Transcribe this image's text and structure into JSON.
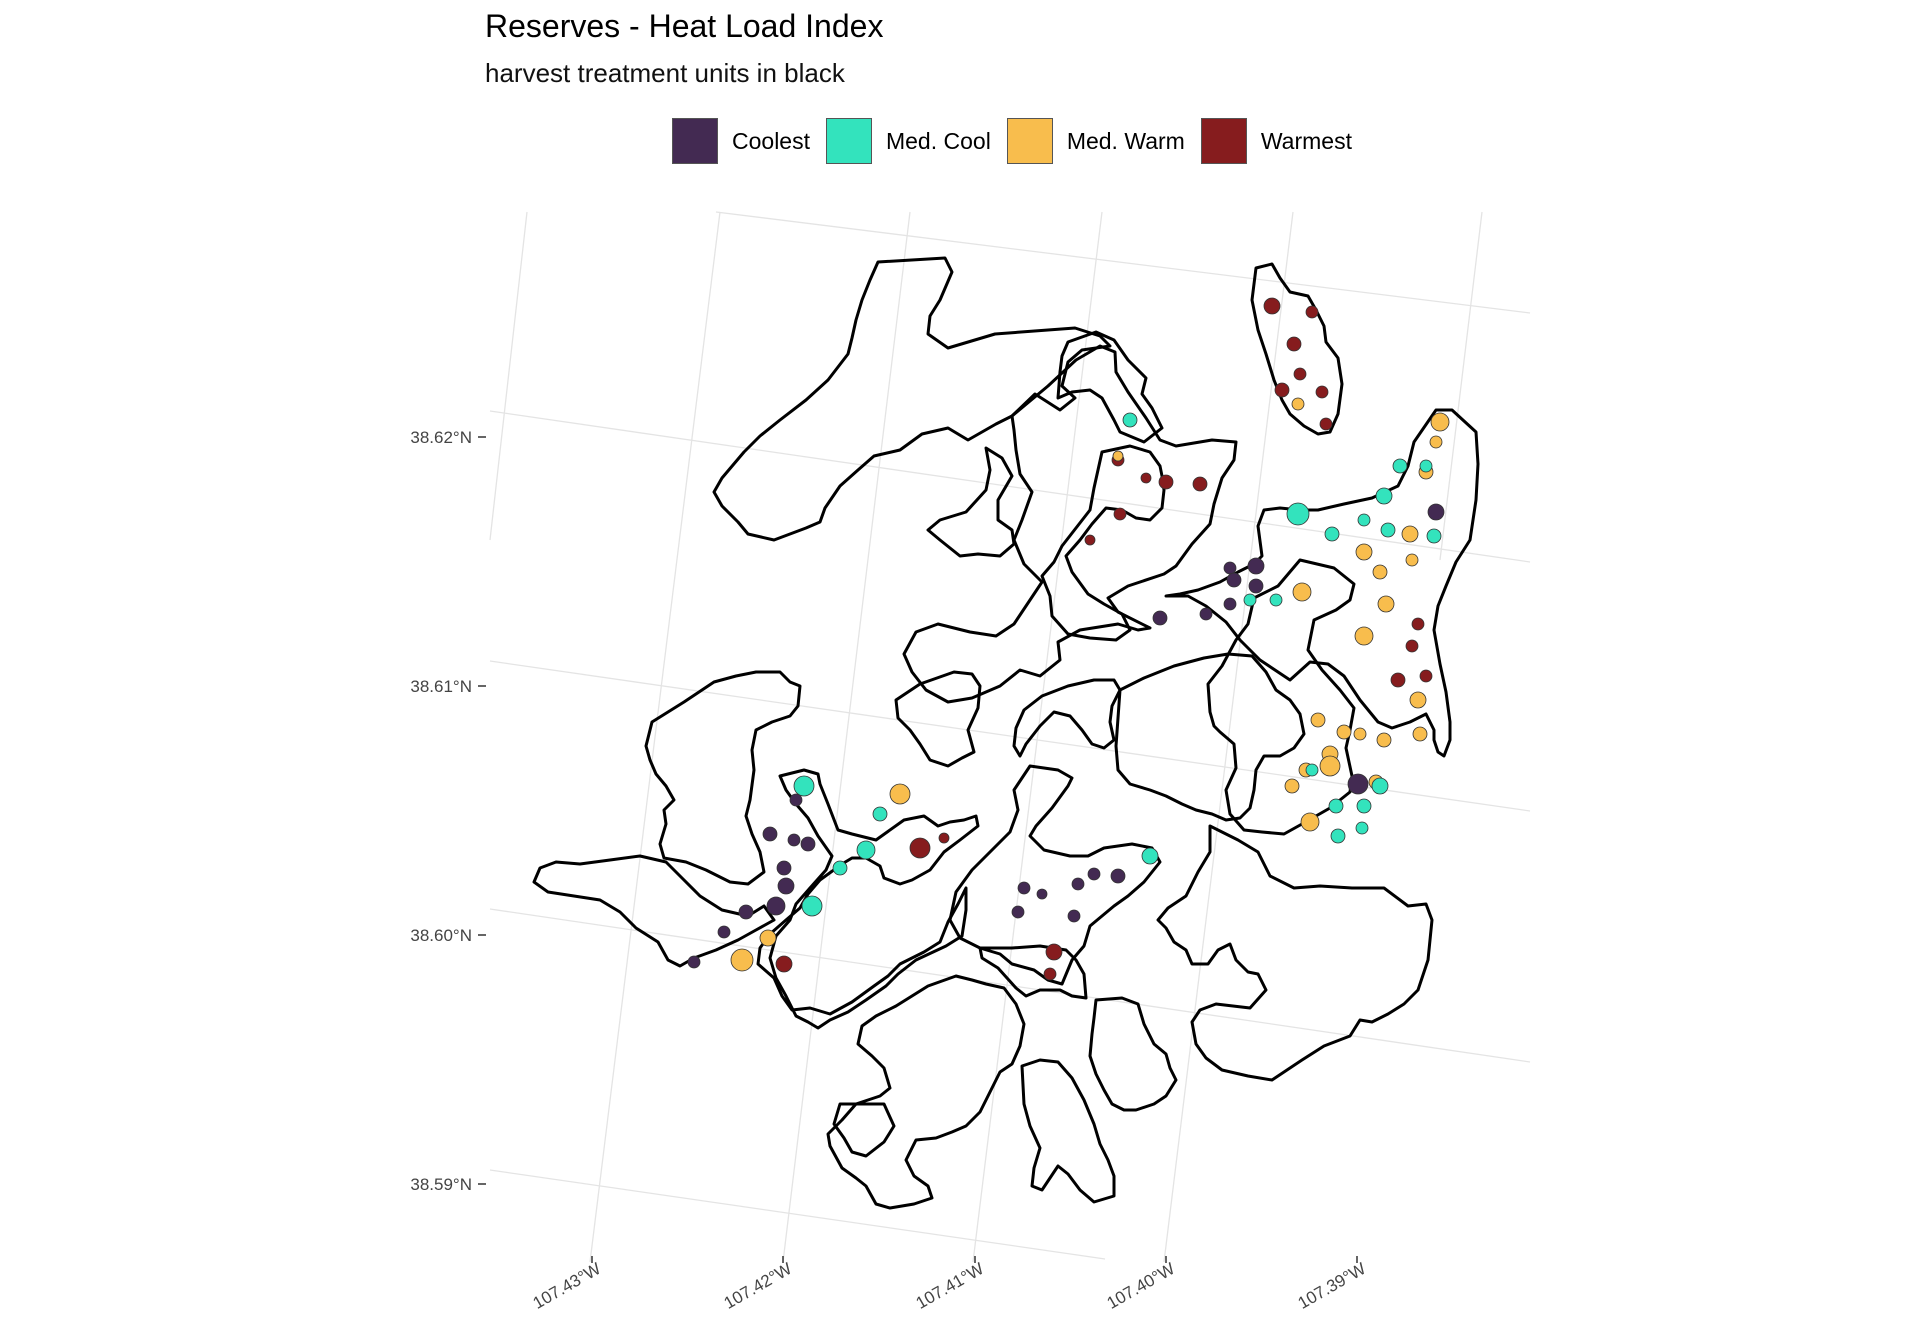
{
  "title": "Reserves - Heat Load Index",
  "subtitle": "harvest treatment units in black",
  "legend": [
    {
      "label": "Coolest",
      "color": "#432a52"
    },
    {
      "label": "Med. Cool",
      "color": "#33e3bd"
    },
    {
      "label": "Med. Warm",
      "color": "#f8bd4d"
    },
    {
      "label": "Warmest",
      "color": "#861c1e"
    }
  ],
  "axes": {
    "y_ticks": [
      "38.62°N",
      "38.61°N",
      "38.60°N",
      "38.59°N"
    ],
    "x_ticks": [
      "107.43°W",
      "107.42°W",
      "107.41°W",
      "107.40°W",
      "107.39°W"
    ]
  },
  "map": {
    "graticule": "light-gray",
    "unit_outline_color": "#000000",
    "background": "#ffffff"
  }
}
